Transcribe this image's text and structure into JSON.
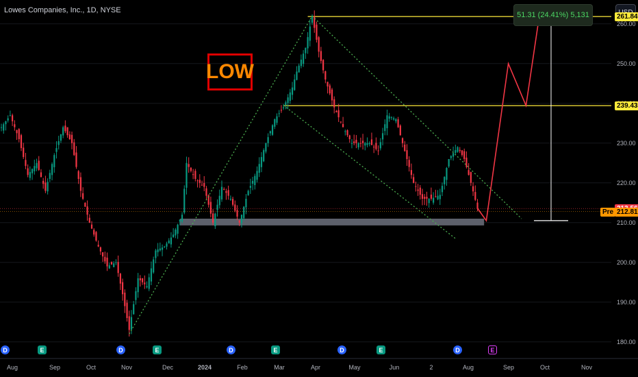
{
  "header": {
    "title": "Lowes Companies, Inc., 1D, NYSE",
    "currency_button": "USD"
  },
  "measure_label": "51.31 (24.41%) 5,131",
  "annotation_text": "LOW",
  "price_badges": [
    {
      "value": "261.84",
      "bg": "#ffeb3b",
      "fg": "#000"
    },
    {
      "value": "239.43",
      "bg": "#ffeb3b",
      "fg": "#000"
    },
    {
      "value": "213.56",
      "bg": "#f23645",
      "fg": "#fff"
    },
    {
      "value": "212.81",
      "bg": "#ff9800",
      "fg": "#000",
      "prefix": "Pre"
    }
  ],
  "colors": {
    "up": "#089981",
    "down": "#f23645",
    "horizontal_level": "#ffeb3b",
    "channel": "#4caf50",
    "projection": "#f23645",
    "zone": "#5d606b"
  },
  "chart_data": {
    "type": "candlestick",
    "title": "Lowes Companies, Inc., 1D, NYSE",
    "x_tick_labels": [
      "Aug",
      "Sep",
      "Oct",
      "Nov",
      "Dec",
      "2024",
      "Feb",
      "Mar",
      "Apr",
      "May",
      "Jun",
      "2",
      "Aug",
      "Sep",
      "Oct",
      "Nov"
    ],
    "y_tick_labels": [
      "180.00",
      "190.00",
      "200.00",
      "210.00",
      "220.00",
      "230.00",
      "240.00",
      "250.00",
      "260.00"
    ],
    "ylim": [
      176,
      266
    ],
    "horizontal_levels": [
      261.84,
      239.43
    ],
    "last_price": 213.56,
    "premarket_price": 212.81,
    "support_zone": [
      209.3,
      211.0
    ],
    "measure": {
      "from": 210.5,
      "to": 261.84,
      "change": "51.31",
      "percent": "24.41%",
      "ticks": "5,131"
    },
    "price_path": [
      [
        0,
        234
      ],
      [
        4,
        237
      ],
      [
        8,
        231
      ],
      [
        12,
        222
      ],
      [
        16,
        225
      ],
      [
        20,
        218
      ],
      [
        24,
        227
      ],
      [
        28,
        234
      ],
      [
        32,
        230
      ],
      [
        36,
        218
      ],
      [
        40,
        210
      ],
      [
        44,
        204
      ],
      [
        48,
        199
      ],
      [
        52,
        200
      ],
      [
        55,
        192
      ],
      [
        58,
        183
      ],
      [
        62,
        196
      ],
      [
        66,
        194
      ],
      [
        70,
        203
      ],
      [
        74,
        204
      ],
      [
        78,
        207
      ],
      [
        82,
        212
      ],
      [
        84,
        225
      ],
      [
        88,
        221
      ],
      [
        92,
        219
      ],
      [
        96,
        210
      ],
      [
        100,
        219
      ],
      [
        104,
        216
      ],
      [
        108,
        210
      ],
      [
        112,
        218
      ],
      [
        116,
        223
      ],
      [
        120,
        230
      ],
      [
        124,
        236
      ],
      [
        128,
        239
      ],
      [
        132,
        244
      ],
      [
        134,
        248
      ],
      [
        138,
        254
      ],
      [
        141,
        262
      ],
      [
        144,
        253
      ],
      [
        147,
        246
      ],
      [
        151,
        239
      ],
      [
        155,
        234
      ],
      [
        159,
        230
      ],
      [
        163,
        230
      ],
      [
        167,
        230
      ],
      [
        171,
        228
      ],
      [
        175,
        237
      ],
      [
        179,
        236
      ],
      [
        183,
        228
      ],
      [
        187,
        220
      ],
      [
        191,
        216
      ],
      [
        195,
        216
      ],
      [
        199,
        217
      ],
      [
        203,
        226
      ],
      [
        207,
        229
      ],
      [
        210,
        226
      ],
      [
        213,
        220
      ],
      [
        216,
        213.6
      ]
    ],
    "projection_path": [
      [
        216,
        213.6
      ],
      [
        220,
        210.5
      ],
      [
        230,
        250
      ],
      [
        238,
        239.43
      ],
      [
        244,
        261.84
      ]
    ],
    "channel_lines": [
      {
        "from": [
          58,
          182
        ],
        "to": [
          141,
          262
        ]
      },
      {
        "from": [
          141,
          262
        ],
        "to": [
          236,
          211
        ]
      },
      {
        "from": [
          128,
          239.5
        ],
        "to": [
          206,
          206
        ]
      }
    ]
  }
}
